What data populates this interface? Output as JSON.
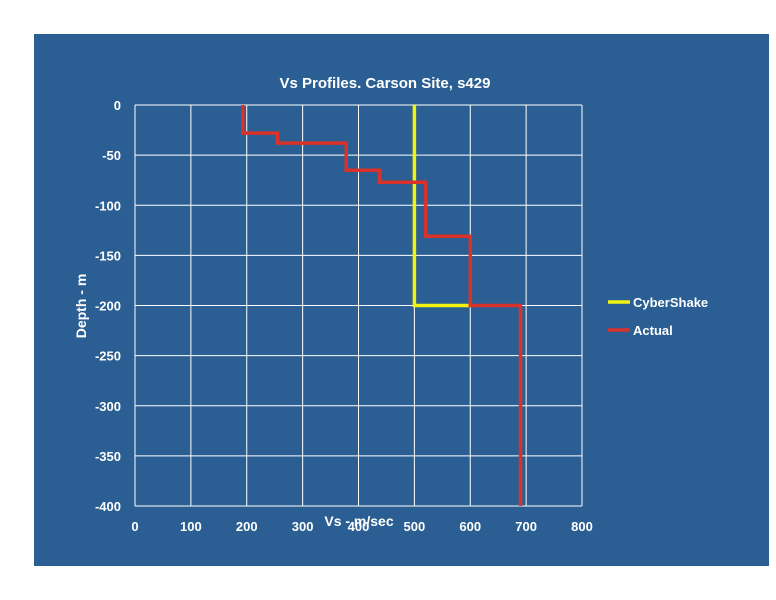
{
  "chart_data": {
    "type": "line",
    "title": "Vs Profiles. Carson Site, s429",
    "xlabel": "Vs - m/sec",
    "ylabel": "Depth - m",
    "xlim": [
      0,
      800
    ],
    "ylim": [
      -400,
      0
    ],
    "xticks": [
      "0",
      "100",
      "200",
      "300",
      "400",
      "500",
      "600",
      "700",
      "800"
    ],
    "yticks": [
      "0",
      "-50",
      "-100",
      "-150",
      "-200",
      "-250",
      "-300",
      "-350",
      "-400"
    ],
    "grid": true,
    "legend_position": "right",
    "series": [
      {
        "name": "CyberShake",
        "color": "#f2f20f",
        "x": [
          500,
          500,
          600
        ],
        "y": [
          0,
          -200,
          -200
        ]
      },
      {
        "name": "Actual",
        "color": "#d8322a",
        "x": [
          193,
          193,
          255,
          255,
          378,
          378,
          438,
          438,
          520,
          520,
          600,
          600,
          690,
          690
        ],
        "y": [
          0,
          -28,
          -28,
          -38,
          -38,
          -65,
          -65,
          -77,
          -77,
          -131,
          -131,
          -200,
          -200,
          -400
        ]
      }
    ]
  }
}
